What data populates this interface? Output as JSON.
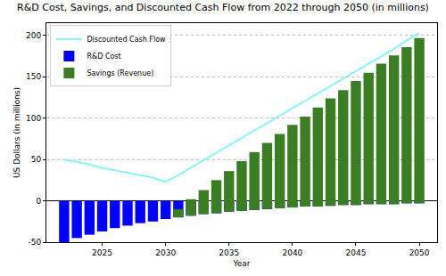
{
  "chart_data": {
    "type": "bar",
    "title": "R&D Cost, Savings, and Discounted Cash Flow from 2022 through 2050 (in millions)",
    "x_label": "Year",
    "y_label": "US Dollars (in millions)",
    "x": [
      2022,
      2023,
      2024,
      2025,
      2026,
      2027,
      2028,
      2029,
      2030,
      2031,
      2032,
      2033,
      2034,
      2035,
      2036,
      2037,
      2038,
      2039,
      2040,
      2041,
      2042,
      2043,
      2044,
      2045,
      2046,
      2047,
      2048,
      2049,
      2050
    ],
    "series": [
      {
        "name": "Discounted Cash Flow",
        "type": "line",
        "color": "#66f5f5",
        "values": [
          50,
          47,
          44,
          40,
          37,
          34,
          31,
          28,
          23,
          31,
          40,
          49,
          58,
          67,
          76,
          85,
          94,
          103,
          112,
          121,
          130,
          139,
          148,
          157,
          166,
          175,
          184,
          194,
          203
        ]
      },
      {
        "name": "R&D Cost",
        "type": "bar",
        "color": "#0000ff",
        "values": [
          -50,
          -45,
          -41,
          -37,
          -33,
          -30,
          -27,
          -25,
          -22,
          -20,
          -18,
          -16,
          -15,
          -13,
          -12,
          -11,
          -10,
          -9,
          -8,
          -7,
          -7,
          -6,
          -5,
          -5,
          -4,
          -4,
          -4,
          -3,
          -3
        ]
      },
      {
        "name": "Savings (Revenue)",
        "type": "bar",
        "color": "#3a7d22",
        "values": [
          null,
          null,
          null,
          null,
          null,
          null,
          null,
          null,
          null,
          10,
          20,
          29,
          40,
          49,
          60,
          70,
          80,
          90,
          100,
          109,
          120,
          130,
          139,
          150,
          159,
          170,
          180,
          189,
          200
        ]
      }
    ],
    "stacked": true,
    "xlim": [
      2020.6,
      2051.4
    ],
    "xticks": [
      2025,
      2030,
      2035,
      2040,
      2045,
      2050
    ],
    "ylim": [
      -50,
      215
    ],
    "yticks": [
      -50,
      0,
      50,
      100,
      150,
      200
    ],
    "grid": true,
    "legend": "upper left"
  }
}
